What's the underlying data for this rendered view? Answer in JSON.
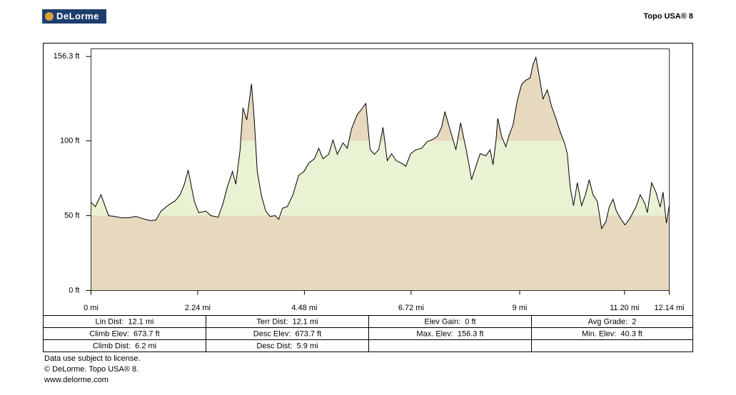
{
  "header": {
    "logo": "DeLorme",
    "product": "Topo USA® 8"
  },
  "chart_data": {
    "type": "area",
    "x": [
      0,
      0.09,
      0.21,
      0.3,
      0.37,
      0.49,
      0.64,
      0.79,
      0.94,
      1.09,
      1.24,
      1.36,
      1.47,
      1.62,
      1.77,
      1.87,
      1.96,
      2.04,
      2.11,
      2.17,
      2.26,
      2.41,
      2.52,
      2.67,
      2.77,
      2.86,
      2.97,
      3.04,
      3.13,
      3.19,
      3.27,
      3.37,
      3.43,
      3.49,
      3.58,
      3.67,
      3.76,
      3.87,
      3.94,
      4.02,
      4.12,
      4.24,
      4.36,
      4.47,
      4.57,
      4.69,
      4.78,
      4.87,
      4.99,
      5.08,
      5.17,
      5.29,
      5.38,
      5.47,
      5.59,
      5.68,
      5.77,
      5.86,
      5.95,
      6.04,
      6.13,
      6.22,
      6.31,
      6.41,
      6.52,
      6.61,
      6.71,
      6.82,
      6.94,
      7.06,
      7.18,
      7.27,
      7.36,
      7.43,
      7.51,
      7.58,
      7.66,
      7.76,
      7.87,
      7.93,
      7.99,
      8.08,
      8.17,
      8.29,
      8.38,
      8.44,
      8.5,
      8.54,
      8.62,
      8.71,
      8.77,
      8.86,
      8.95,
      9.04,
      9.13,
      9.22,
      9.28,
      9.34,
      9.4,
      9.49,
      9.58,
      9.67,
      9.76,
      9.85,
      9.94,
      10.0,
      10.06,
      10.13,
      10.21,
      10.3,
      10.39,
      10.46,
      10.54,
      10.63,
      10.72,
      10.81,
      10.88,
      10.96,
      11.03,
      11.11,
      11.21,
      11.32,
      11.44,
      11.53,
      11.63,
      11.68,
      11.77,
      11.86,
      11.95,
      12.01,
      12.08,
      12.14
    ],
    "values": [
      59,
      56,
      64,
      56,
      50,
      49.5,
      48.6,
      48.6,
      49.5,
      48,
      46.7,
      47,
      53,
      57,
      60,
      64,
      71,
      80.5,
      69,
      59.5,
      52,
      53,
      50,
      49,
      58,
      69,
      79.5,
      71,
      94,
      122,
      114,
      138,
      113,
      79.5,
      63,
      53,
      49.5,
      50,
      47.6,
      55,
      56,
      64,
      77,
      79.5,
      85,
      88,
      95,
      88,
      91,
      100.5,
      91,
      98.6,
      95,
      108,
      117.6,
      121,
      125,
      94,
      91,
      94,
      109,
      86.7,
      91.4,
      86.7,
      85,
      83,
      91.4,
      94,
      95,
      99.5,
      101,
      103,
      109,
      119.5,
      110.5,
      103,
      94,
      112,
      95,
      85,
      74,
      83,
      91.4,
      90,
      94,
      84,
      99.5,
      115,
      103,
      96,
      103,
      110.5,
      127,
      137.6,
      140.5,
      142,
      151,
      155.7,
      145,
      128,
      134,
      123,
      115,
      106,
      98.6,
      91.4,
      69,
      56.7,
      72,
      56.7,
      65,
      74,
      64,
      59.5,
      41.4,
      46,
      55.7,
      61,
      53,
      48.6,
      43.8,
      48.6,
      55.7,
      64,
      58,
      52,
      72,
      65.7,
      55.7,
      65.7,
      45,
      56.7
    ],
    "color": "#000000",
    "band_colors": [
      "#e6d9be",
      "#e9f2d2",
      "#e6d9be"
    ],
    "xlim": [
      0,
      12.14
    ],
    "ylim": [
      0,
      161.4
    ],
    "xticks": [
      {
        "value": 0,
        "label": "0 mi"
      },
      {
        "value": 2.24,
        "label": "2.24 mi"
      },
      {
        "value": 4.48,
        "label": "4.48 mi"
      },
      {
        "value": 6.72,
        "label": "6.72 mi"
      },
      {
        "value": 9,
        "label": "9 mi"
      },
      {
        "value": 11.2,
        "label": "11.20 mi"
      },
      {
        "value": 12.14,
        "label": "12.14 mi"
      }
    ],
    "yticks": [
      {
        "value": 0,
        "label": "0 ft"
      },
      {
        "value": 50,
        "label": "50 ft"
      },
      {
        "value": 100,
        "label": "100 ft"
      },
      {
        "value": 156.3,
        "label": "156.3 ft"
      }
    ]
  },
  "stats": [
    [
      "Lin Dist:  12.1 mi",
      "Terr Dist:  12.1 mi",
      "Elev Gain:  0 ft",
      "Avg Grade:  2"
    ],
    [
      "Climb Elev:  673.7 ft",
      "Desc Elev:  673.7 ft",
      "Max. Elev:  156.3 ft",
      "Min. Elev:  40.3 ft"
    ],
    [
      "Climb Dist:  6.2 mi",
      "Desc Dist:  5.9 mi"
    ]
  ],
  "footer": [
    "Data use subject to license.",
    "© DeLorme. Topo USA® 8.",
    "www.delorme.com"
  ]
}
